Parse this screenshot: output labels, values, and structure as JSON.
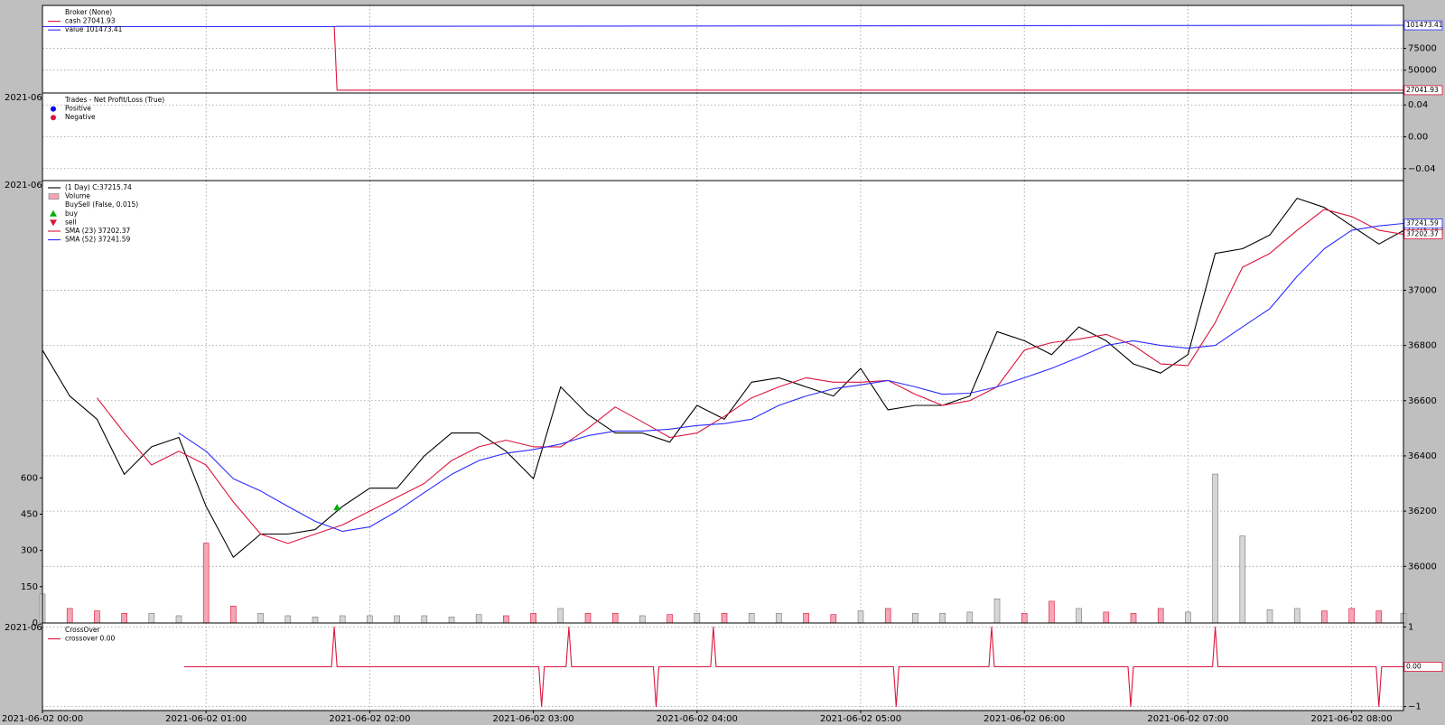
{
  "chart_data": [
    {
      "type": "line",
      "legend_title": "Broker (None)",
      "x": [
        "2021-06-02 00:00",
        "2021-06-02 01:47",
        "2021-06-02 01:48",
        "2021-06-02 08:19"
      ],
      "series": [
        {
          "name": "cash 27041.93",
          "color": "#dc143c",
          "values": [
            100000,
            100000,
            27041.93,
            27041.93
          ]
        },
        {
          "name": "value 101473.41",
          "color": "#2b2bff",
          "values": [
            100000,
            100000,
            100250,
            101473.41
          ]
        }
      ],
      "ylim": [
        23800,
        124300
      ],
      "yticks": [
        50000,
        75000
      ],
      "grid": true
    },
    {
      "type": "scatter",
      "legend_title": "Trades - Net Profit/Loss (True)",
      "corner_label": "2021-06",
      "x": [],
      "series": [
        {
          "name": "Positive",
          "color": "#0000ff",
          "marker": "o",
          "values": []
        },
        {
          "name": "Negative",
          "color": "#dc143c",
          "marker": "o",
          "values": []
        }
      ],
      "ylim": [
        -0.055,
        0.055
      ],
      "yticks": [
        0.04,
        {
          "value": 0,
          "label": "0.00"
        },
        {
          "value": -0.04,
          "label": "−0.04"
        }
      ],
      "grid": true
    },
    {
      "type": "line",
      "corner_label": "2021-06",
      "x": [
        "2021-06-02 00:00",
        "2021-06-02 00:10",
        "2021-06-02 00:20",
        "2021-06-02 00:30",
        "2021-06-02 00:40",
        "2021-06-02 00:50",
        "2021-06-02 01:00",
        "2021-06-02 01:10",
        "2021-06-02 01:20",
        "2021-06-02 01:30",
        "2021-06-02 01:40",
        "2021-06-02 01:50",
        "2021-06-02 02:00",
        "2021-06-02 02:10",
        "2021-06-02 02:20",
        "2021-06-02 02:30",
        "2021-06-02 02:40",
        "2021-06-02 02:50",
        "2021-06-02 03:00",
        "2021-06-02 03:10",
        "2021-06-02 03:20",
        "2021-06-02 03:30",
        "2021-06-02 03:40",
        "2021-06-02 03:50",
        "2021-06-02 04:00",
        "2021-06-02 04:10",
        "2021-06-02 04:20",
        "2021-06-02 04:30",
        "2021-06-02 04:40",
        "2021-06-02 04:50",
        "2021-06-02 05:00",
        "2021-06-02 05:10",
        "2021-06-02 05:20",
        "2021-06-02 05:30",
        "2021-06-02 05:40",
        "2021-06-02 05:50",
        "2021-06-02 06:00",
        "2021-06-02 06:10",
        "2021-06-02 06:20",
        "2021-06-02 06:30",
        "2021-06-02 06:40",
        "2021-06-02 06:50",
        "2021-06-02 07:00",
        "2021-06-02 07:10",
        "2021-06-02 07:20",
        "2021-06-02 07:30",
        "2021-06-02 07:40",
        "2021-06-02 07:50",
        "2021-06-02 08:00",
        "2021-06-02 08:10",
        "2021-06-02 08:19"
      ],
      "series": [
        {
          "name": "(1 Day) C:37215.74",
          "color": "#000000",
          "values": [
            36783,
            36617,
            36533,
            36333,
            36433,
            36467,
            36217,
            36033,
            36117,
            36117,
            36133,
            36217,
            36283,
            36283,
            36400,
            36483,
            36483,
            36417,
            36317,
            36650,
            36550,
            36483,
            36483,
            36450,
            36583,
            36533,
            36667,
            36683,
            36650,
            36617,
            36717,
            36567,
            36583,
            36583,
            36617,
            36850,
            36817,
            36767,
            36867,
            36817,
            36733,
            36700,
            36767,
            37133,
            37150,
            37200,
            37333,
            37300,
            37233,
            37167,
            37215.74
          ]
        },
        {
          "name": "Volume",
          "type": "bar",
          "axis": "y2",
          "up_color": "#d6d6d6",
          "down_color": "#f3a6b4",
          "values": [
            120,
            60,
            50,
            40,
            40,
            30,
            330,
            70,
            40,
            30,
            25,
            30,
            30,
            30,
            30,
            25,
            35,
            30,
            40,
            60,
            40,
            40,
            30,
            35,
            40,
            40,
            40,
            40,
            40,
            35,
            50,
            60,
            40,
            40,
            45,
            100,
            40,
            90,
            60,
            45,
            40,
            60,
            45,
            616,
            360,
            55,
            60,
            50,
            60,
            50,
            40
          ]
        },
        {
          "name": "SMA (23) 37202.37",
          "color": "#dc143c",
          "values": [
            null,
            null,
            36610,
            36483,
            36367,
            36417,
            36367,
            36233,
            36117,
            36083,
            36117,
            36150,
            36200,
            36250,
            36300,
            36383,
            36433,
            36457,
            36433,
            36433,
            36500,
            36577,
            36523,
            36467,
            36483,
            36543,
            36610,
            36650,
            36683,
            36667,
            36667,
            36673,
            36623,
            36583,
            36600,
            36650,
            36783,
            36810,
            36823,
            36840,
            36800,
            36733,
            36727,
            36883,
            37083,
            37133,
            37217,
            37293,
            37267,
            37217,
            37202.37
          ]
        },
        {
          "name": "SMA (52) 37241.59",
          "color": "#2b2bff",
          "values": [
            null,
            null,
            null,
            null,
            null,
            36483,
            36417,
            36317,
            36273,
            36217,
            36163,
            36127,
            36143,
            36200,
            36267,
            36333,
            36383,
            36410,
            36423,
            36443,
            36473,
            36490,
            36490,
            36497,
            36510,
            36517,
            36533,
            36583,
            36617,
            36643,
            36657,
            36673,
            36650,
            36623,
            36627,
            36650,
            36683,
            36717,
            36757,
            36800,
            36817,
            36800,
            36790,
            36800,
            36867,
            36933,
            37050,
            37150,
            37217,
            37233,
            37241.59
          ]
        }
      ],
      "buysell": {
        "title": "BuySell (False, 0.015)",
        "series": [
          {
            "name": "buy",
            "type": "scatter",
            "marker": "^",
            "color": "#00b000",
            "x": [
              "2021-06-02 01:48"
            ],
            "values": [
              36213
            ]
          },
          {
            "name": "sell",
            "type": "scatter",
            "marker": "v",
            "color": "#dc143c",
            "x": [],
            "values": []
          }
        ]
      },
      "ylim": [
        35795,
        37397
      ],
      "yticks": [
        36000,
        36200,
        36400,
        36600,
        36800,
        37000
      ],
      "y2lim": [
        0,
        1830
      ],
      "y2ticks": [
        0,
        150,
        300,
        450,
        600
      ],
      "grid": true
    },
    {
      "type": "line",
      "legend_title": "CrossOver",
      "corner_label": "2021-06",
      "x": [
        "2021-06-02 00:52",
        "2021-06-02 01:46",
        "2021-06-02 01:47",
        "2021-06-02 01:48",
        "2021-06-02 03:02",
        "2021-06-02 03:03",
        "2021-06-02 03:04",
        "2021-06-02 03:12",
        "2021-06-02 03:13",
        "2021-06-02 03:14",
        "2021-06-02 03:44",
        "2021-06-02 03:45",
        "2021-06-02 03:46",
        "2021-06-02 04:05",
        "2021-06-02 04:06",
        "2021-06-02 04:07",
        "2021-06-02 05:12",
        "2021-06-02 05:13",
        "2021-06-02 05:14",
        "2021-06-02 05:47",
        "2021-06-02 05:48",
        "2021-06-02 05:49",
        "2021-06-02 06:38",
        "2021-06-02 06:39",
        "2021-06-02 06:40",
        "2021-06-02 07:09",
        "2021-06-02 07:10",
        "2021-06-02 07:11",
        "2021-06-02 08:09",
        "2021-06-02 08:10",
        "2021-06-02 08:11",
        "2021-06-02 08:19"
      ],
      "series": [
        {
          "name": "crossover 0.00",
          "color": "#dc143c",
          "values": [
            0,
            0,
            1,
            0,
            0,
            -1,
            0,
            0,
            1,
            0,
            0,
            -1,
            0,
            0,
            1,
            0,
            0,
            -1,
            0,
            0,
            1,
            0,
            0,
            -1,
            0,
            0,
            1,
            0,
            0,
            -1,
            0,
            0
          ],
          "value_labels": [
            null,
            null,
            null,
            null,
            null,
            null,
            null,
            null,
            null,
            null,
            null,
            null,
            null,
            null,
            null,
            null,
            null,
            null,
            null,
            null,
            null,
            null,
            null,
            null,
            null,
            null,
            null,
            null,
            null,
            null,
            null,
            "0.00"
          ]
        }
      ],
      "ylim": [
        -1.1,
        1.1
      ],
      "yticks": [
        1,
        {
          "value": -1,
          "label": "−1"
        }
      ],
      "grid": true,
      "xlim": [
        "2021-06-02 00:00",
        "2021-06-02 08:19"
      ],
      "xticks": [
        "2021-06-02 00:00",
        "2021-06-02 01:00",
        "2021-06-02 02:00",
        "2021-06-02 03:00",
        "2021-06-02 04:00",
        "2021-06-02 05:00",
        "2021-06-02 06:00",
        "2021-06-02 07:00",
        "2021-06-02 08:00"
      ]
    }
  ]
}
